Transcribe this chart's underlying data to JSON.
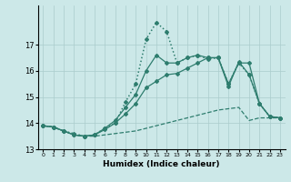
{
  "xlabel": "Humidex (Indice chaleur)",
  "background_color": "#cce8e8",
  "grid_color": "#aacccc",
  "line_color": "#2e7d6e",
  "xlim": [
    -0.5,
    23.5
  ],
  "ylim": [
    13,
    18.5
  ],
  "yticks": [
    13,
    14,
    15,
    16,
    17
  ],
  "xticks": [
    0,
    1,
    2,
    3,
    4,
    5,
    6,
    7,
    8,
    9,
    10,
    11,
    12,
    13,
    14,
    15,
    16,
    17,
    18,
    19,
    20,
    21,
    22,
    23
  ],
  "series": [
    {
      "x": [
        0,
        1,
        2,
        3,
        4,
        5,
        6,
        7,
        8,
        9,
        10,
        11,
        12,
        13,
        14,
        15,
        16,
        17,
        18,
        19,
        20,
        21,
        22,
        23
      ],
      "y": [
        13.9,
        13.85,
        13.7,
        13.55,
        13.5,
        13.5,
        13.55,
        13.6,
        13.65,
        13.7,
        13.8,
        13.9,
        14.0,
        14.1,
        14.2,
        14.3,
        14.4,
        14.5,
        14.55,
        14.6,
        14.1,
        14.2,
        14.2,
        14.2
      ],
      "style": "--",
      "marker": null,
      "linewidth": 0.9
    },
    {
      "x": [
        0,
        1,
        2,
        3,
        4,
        5,
        6,
        7,
        8,
        9,
        10,
        11,
        12,
        13,
        14,
        15,
        16,
        17,
        18,
        19,
        20,
        21,
        22,
        23
      ],
      "y": [
        13.9,
        13.85,
        13.7,
        13.55,
        13.5,
        13.55,
        13.75,
        14.0,
        14.35,
        14.75,
        15.35,
        15.6,
        15.85,
        15.9,
        16.1,
        16.3,
        16.5,
        16.5,
        15.4,
        16.35,
        15.85,
        14.75,
        14.25,
        14.2
      ],
      "style": "-",
      "marker": "D",
      "markersize": 2.0,
      "linewidth": 0.9
    },
    {
      "x": [
        0,
        1,
        2,
        3,
        4,
        5,
        6,
        7,
        8,
        9,
        10,
        11,
        12,
        13,
        14,
        15,
        16,
        17,
        18,
        19,
        20,
        21,
        22,
        23
      ],
      "y": [
        13.9,
        13.85,
        13.7,
        13.55,
        13.5,
        13.55,
        13.8,
        14.1,
        14.6,
        15.1,
        16.0,
        16.6,
        16.3,
        16.3,
        16.5,
        16.6,
        16.5,
        16.5,
        15.5,
        16.3,
        16.3,
        14.75,
        14.25,
        14.2
      ],
      "style": "-",
      "marker": "D",
      "markersize": 2.0,
      "linewidth": 0.9
    },
    {
      "x": [
        0,
        1,
        2,
        3,
        4,
        5,
        6,
        7,
        8,
        9,
        10,
        11,
        12,
        13,
        14,
        15,
        16,
        17,
        18,
        19,
        20,
        21,
        22,
        23
      ],
      "y": [
        13.9,
        13.85,
        13.7,
        13.6,
        13.5,
        13.55,
        13.8,
        14.0,
        14.8,
        15.5,
        17.2,
        17.85,
        17.5,
        16.3,
        16.5,
        16.6,
        16.45,
        16.5,
        15.5,
        16.3,
        15.85,
        14.75,
        14.25,
        14.2
      ],
      "style": ":",
      "marker": "D",
      "markersize": 2.0,
      "linewidth": 1.1
    }
  ]
}
